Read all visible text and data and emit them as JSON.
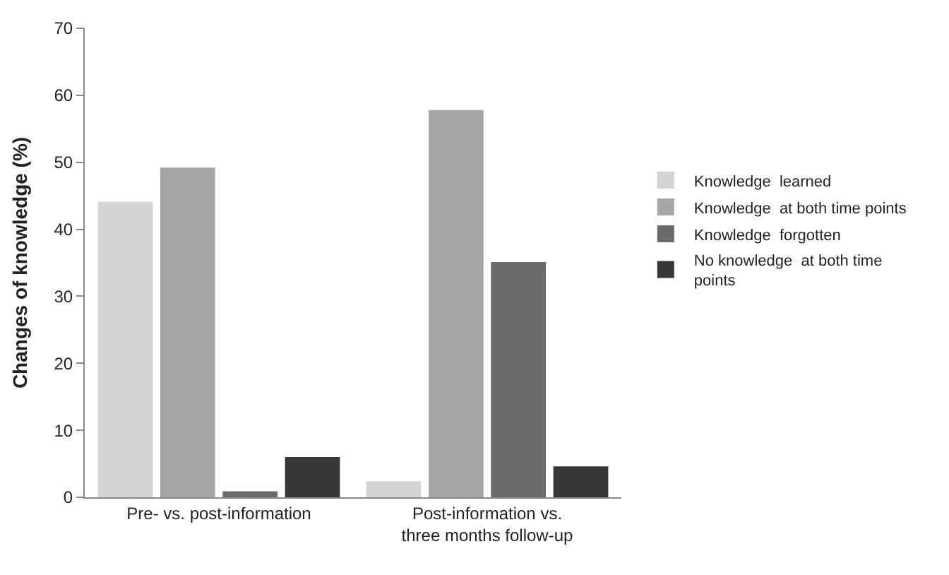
{
  "chart_data": {
    "type": "bar",
    "ylabel": "Changes of knowledge (%)",
    "categories": [
      "Pre- vs. post-information",
      "Post-information vs. three months follow-up"
    ],
    "series": [
      {
        "name": "Knowledge  learned",
        "color": "#d4d4d4",
        "values": [
          44.1,
          2.4
        ]
      },
      {
        "name": "Knowledge  at both time points",
        "color": "#a6a6a6",
        "values": [
          49.2,
          57.8
        ]
      },
      {
        "name": "Knowledge  forgotten",
        "color": "#6b6b6b",
        "values": [
          0.9,
          35.1
        ]
      },
      {
        "name": "No knowledge  at both time points",
        "color": "#363636",
        "values": [
          6.0,
          4.6
        ]
      }
    ],
    "ylim": [
      0,
      70
    ],
    "yticks": [
      0,
      10,
      20,
      30,
      40,
      50,
      60,
      70
    ],
    "legend": "right"
  }
}
